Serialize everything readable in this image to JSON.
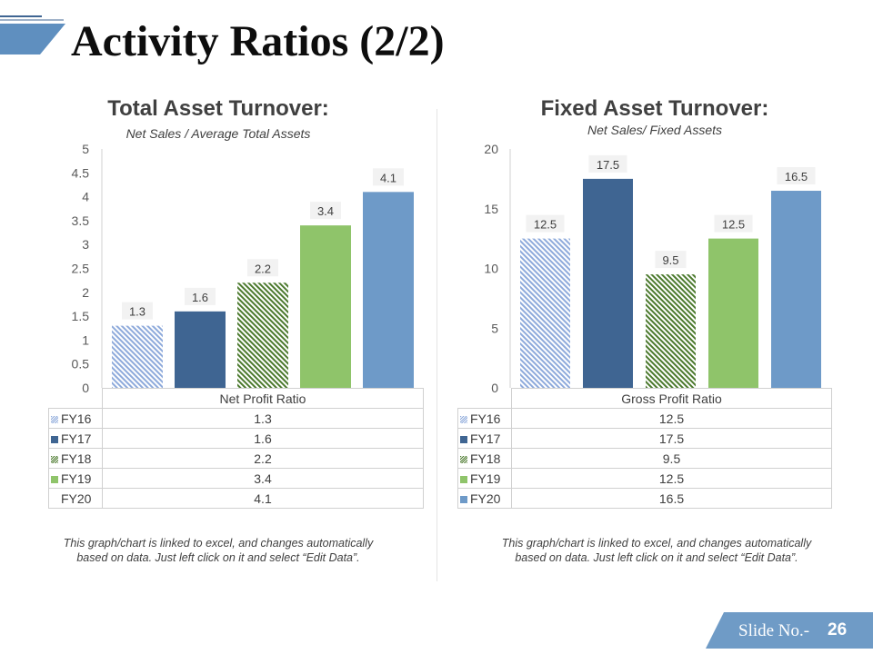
{
  "slide": {
    "title": "Activity Ratios (2/2)",
    "slide_no_label": "Slide No.-",
    "slide_no": "26"
  },
  "colors": {
    "fy16": "#8eaadb",
    "fy17": "#3f6592",
    "fy18": "#4c7a2e",
    "fy19": "#8fc46a",
    "fy20": "#6e9ac8",
    "accent": "#6f9bc6"
  },
  "chart_data": [
    {
      "type": "bar",
      "title": "Total Asset Turnover:",
      "subtitle": "Net Sales / Average Total Assets",
      "categories": [
        "Net Profit Ratio"
      ],
      "series": [
        {
          "name": "FY16",
          "values": [
            1.3
          ],
          "fill": "hatch"
        },
        {
          "name": "FY17",
          "values": [
            1.6
          ],
          "fill": "solid"
        },
        {
          "name": "FY18",
          "values": [
            2.2
          ],
          "fill": "hatch"
        },
        {
          "name": "FY19",
          "values": [
            3.4
          ],
          "fill": "solid"
        },
        {
          "name": "FY20",
          "values": [
            4.1
          ],
          "fill": "solid"
        }
      ],
      "value_labels": [
        "1.3",
        "1.6",
        "2.2",
        "3.4",
        "4.1"
      ],
      "ylim": [
        0,
        5
      ],
      "yticks": [
        "0",
        "0.5",
        "1",
        "1.5",
        "2",
        "2.5",
        "3",
        "3.5",
        "4",
        "4.5",
        "5"
      ],
      "xlabel": "",
      "ylabel": "",
      "note": "This graph/chart is linked to excel, and changes automatically based on data. Just left click on it and select “Edit Data”."
    },
    {
      "type": "bar",
      "title": "Fixed Asset Turnover:",
      "subtitle": "Net Sales/ Fixed Assets",
      "categories": [
        "Gross Profit Ratio"
      ],
      "series": [
        {
          "name": "FY16",
          "values": [
            12.5
          ],
          "fill": "hatch"
        },
        {
          "name": "FY17",
          "values": [
            17.5
          ],
          "fill": "solid"
        },
        {
          "name": "FY18",
          "values": [
            9.5
          ],
          "fill": "hatch"
        },
        {
          "name": "FY19",
          "values": [
            12.5
          ],
          "fill": "solid"
        },
        {
          "name": "FY20",
          "values": [
            16.5
          ],
          "fill": "solid"
        }
      ],
      "value_labels": [
        "12.5",
        "17.5",
        "9.5",
        "12.5",
        "16.5"
      ],
      "ylim": [
        0,
        20
      ],
      "yticks": [
        "0",
        "5",
        "10",
        "15",
        "20"
      ],
      "xlabel": "",
      "ylabel": "",
      "note": "This graph/chart is linked to excel, and changes automatically based on data. Just left click on it and select “Edit Data”."
    }
  ]
}
